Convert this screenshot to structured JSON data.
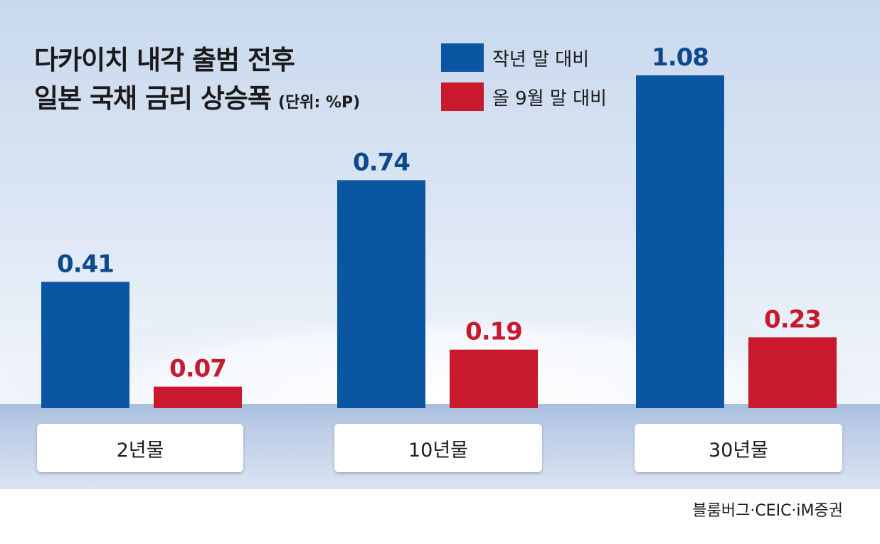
{
  "title": {
    "line1": "다카이치 내각 출범 전후",
    "line2": "일본 국채 금리 상승폭",
    "unit": "(단위: %P)"
  },
  "source": "블룸버그·CEIC·iM증권",
  "colors": {
    "series_0": "#0b56a3",
    "series_1": "#c8192f",
    "label_0": "#0d4a8c",
    "label_1": "#c8192f"
  },
  "chart_data": {
    "type": "bar",
    "title": "다카이치 내각 출범 전후 일본 국채 금리 상승폭",
    "unit": "%P",
    "categories": [
      "2년물",
      "10년물",
      "30년물"
    ],
    "series": [
      {
        "name": "작년 말 대비",
        "values": [
          0.41,
          0.74,
          1.08
        ],
        "labels": [
          "0.41",
          "0.74",
          "1.08"
        ]
      },
      {
        "name": "올 9월 말 대비",
        "values": [
          0.07,
          0.19,
          0.23
        ],
        "labels": [
          "0.07",
          "0.19",
          "0.23"
        ]
      }
    ],
    "ylim": [
      0,
      1.08
    ],
    "grid": false,
    "legend": "top-right"
  }
}
